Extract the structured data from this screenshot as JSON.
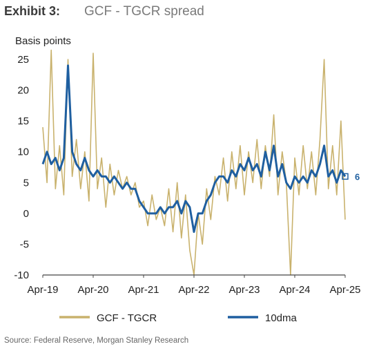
{
  "header": {
    "exhibit": "Exhibit 3:",
    "title": "GCF - TGCR spread"
  },
  "source": "Source: Federal Reserve, Morgan Stanley Research",
  "chart_data": {
    "type": "line",
    "ylabel": "Basis points",
    "ylim": [
      -10,
      25
    ],
    "yticks": [
      25,
      20,
      15,
      10,
      5,
      0,
      -5,
      -10
    ],
    "xlim": [
      "2019-04",
      "2025-04"
    ],
    "xticks": [
      "Apr-19",
      "Apr-20",
      "Apr-21",
      "Apr-22",
      "Apr-23",
      "Apr-24",
      "Apr-25"
    ],
    "grid": false,
    "legend_position": "bottom",
    "end_label": "6",
    "colors": {
      "gcf": "#c9b26d",
      "dma": "#1f5fa0",
      "axis": "#444444"
    },
    "series": [
      {
        "name": "GCF - TGCR",
        "color": "#c9b26d",
        "x": [
          "2019-04",
          "2019-05",
          "2019-06",
          "2019-07",
          "2019-08",
          "2019-09",
          "2019-10",
          "2019-11",
          "2019-12",
          "2020-01",
          "2020-02",
          "2020-03",
          "2020-04",
          "2020-05",
          "2020-06",
          "2020-07",
          "2020-08",
          "2020-09",
          "2020-10",
          "2020-11",
          "2020-12",
          "2021-01",
          "2021-02",
          "2021-03",
          "2021-04",
          "2021-05",
          "2021-06",
          "2021-07",
          "2021-08",
          "2021-09",
          "2021-10",
          "2021-11",
          "2021-12",
          "2022-01",
          "2022-02",
          "2022-03",
          "2022-04",
          "2022-05",
          "2022-06",
          "2022-07",
          "2022-08",
          "2022-09",
          "2022-10",
          "2022-11",
          "2022-12",
          "2023-01",
          "2023-02",
          "2023-03",
          "2023-04",
          "2023-05",
          "2023-06",
          "2023-07",
          "2023-08",
          "2023-09",
          "2023-10",
          "2023-11",
          "2023-12",
          "2024-01",
          "2024-02",
          "2024-03",
          "2024-04",
          "2024-05",
          "2024-06",
          "2024-07",
          "2024-08",
          "2024-09",
          "2024-10",
          "2024-11",
          "2024-12",
          "2025-01",
          "2025-02",
          "2025-03",
          "2025-04"
        ],
        "values": [
          14,
          5,
          27,
          4,
          11,
          3,
          25,
          6,
          12,
          4,
          10,
          2,
          26,
          4,
          9,
          1,
          8,
          3,
          7,
          4,
          6,
          3,
          5,
          1,
          2,
          -2,
          3,
          -1,
          1,
          -2,
          4,
          -3,
          5,
          -4,
          3,
          -6,
          -10,
          0,
          -5,
          4,
          -1,
          6,
          3,
          9,
          2,
          10,
          4,
          11,
          3,
          10,
          5,
          12,
          4,
          11,
          6,
          16,
          3,
          10,
          5,
          -10,
          9,
          3,
          11,
          4,
          10,
          3,
          12,
          25,
          4,
          11,
          3,
          15,
          -1
        ]
      },
      {
        "name": "10dma",
        "color": "#1f5fa0",
        "x": [
          "2019-04",
          "2019-05",
          "2019-06",
          "2019-07",
          "2019-08",
          "2019-09",
          "2019-10",
          "2019-11",
          "2019-12",
          "2020-01",
          "2020-02",
          "2020-03",
          "2020-04",
          "2020-05",
          "2020-06",
          "2020-07",
          "2020-08",
          "2020-09",
          "2020-10",
          "2020-11",
          "2020-12",
          "2021-01",
          "2021-02",
          "2021-03",
          "2021-04",
          "2021-05",
          "2021-06",
          "2021-07",
          "2021-08",
          "2021-09",
          "2021-10",
          "2021-11",
          "2021-12",
          "2022-01",
          "2022-02",
          "2022-03",
          "2022-04",
          "2022-05",
          "2022-06",
          "2022-07",
          "2022-08",
          "2022-09",
          "2022-10",
          "2022-11",
          "2022-12",
          "2023-01",
          "2023-02",
          "2023-03",
          "2023-04",
          "2023-05",
          "2023-06",
          "2023-07",
          "2023-08",
          "2023-09",
          "2023-10",
          "2023-11",
          "2023-12",
          "2024-01",
          "2024-02",
          "2024-03",
          "2024-04",
          "2024-05",
          "2024-06",
          "2024-07",
          "2024-08",
          "2024-09",
          "2024-10",
          "2024-11",
          "2024-12",
          "2025-01",
          "2025-02",
          "2025-03",
          "2025-04"
        ],
        "values": [
          8,
          10,
          8,
          9,
          7,
          9,
          24,
          10,
          8,
          7,
          9,
          7,
          6,
          7,
          6,
          6,
          5,
          6,
          5,
          4,
          5,
          4,
          4,
          2,
          1,
          0,
          0,
          0,
          1,
          0,
          1,
          1,
          2,
          0,
          2,
          1,
          -3,
          0,
          0,
          2,
          3,
          5,
          6,
          6,
          5,
          7,
          6,
          8,
          7,
          9,
          7,
          8,
          6,
          10,
          7,
          11,
          6,
          8,
          5,
          4,
          6,
          5,
          6,
          5,
          7,
          6,
          8,
          11,
          6,
          7,
          5,
          7,
          6
        ]
      }
    ]
  }
}
